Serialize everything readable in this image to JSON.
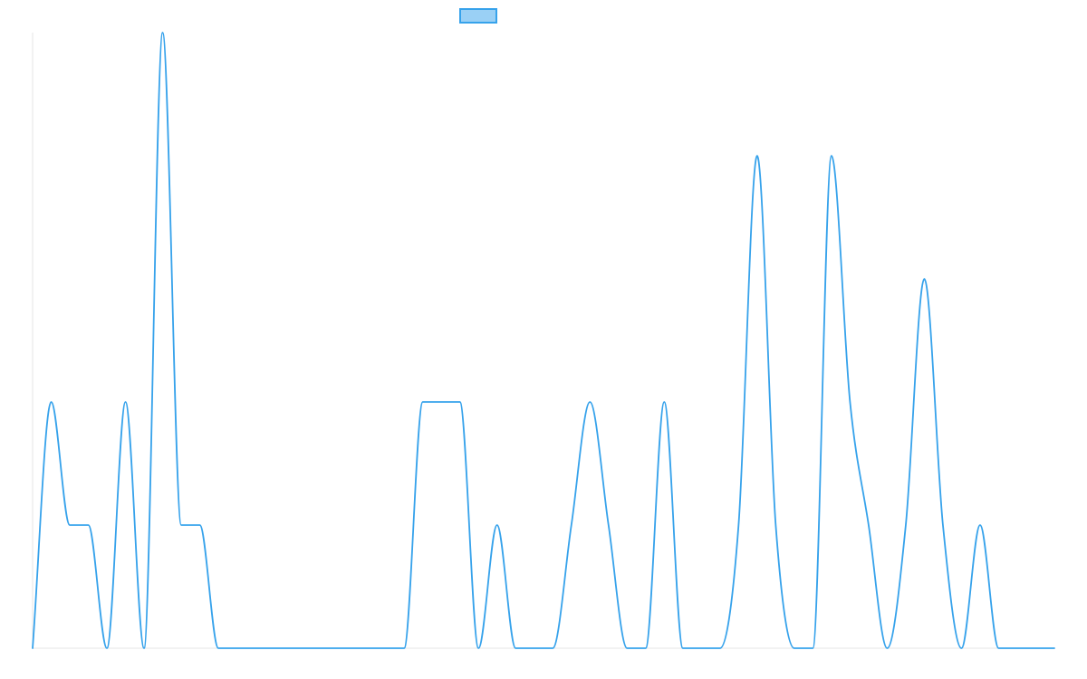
{
  "chart_data": {
    "type": "line",
    "title": "",
    "xlabel": "",
    "ylabel": "",
    "grid": false,
    "legend": {
      "placement": "top-center",
      "labels": [
        ""
      ]
    },
    "x": [
      0,
      1,
      2,
      3,
      4,
      5,
      6,
      7,
      8,
      9,
      10,
      11,
      12,
      13,
      14,
      15,
      16,
      17,
      18,
      19,
      20,
      21,
      22,
      23,
      24,
      25,
      26,
      27,
      28,
      29,
      30,
      31,
      32,
      33,
      34,
      35,
      36,
      37,
      38,
      39,
      40,
      41,
      42,
      43,
      44,
      45,
      46,
      47,
      48,
      49,
      50,
      51,
      52,
      53,
      54,
      55
    ],
    "ylim": [
      0,
      5
    ],
    "series": [
      {
        "name": "",
        "color": "#36a2eb",
        "fill": "#9ad0f5",
        "values": [
          0,
          2,
          1,
          1,
          0,
          2,
          0,
          5,
          1,
          1,
          0,
          0,
          0,
          0,
          0,
          0,
          0,
          0,
          0,
          0,
          0,
          2,
          2,
          2,
          0,
          1,
          0,
          0,
          0,
          1,
          2,
          1,
          0,
          0,
          2,
          0,
          0,
          0,
          1,
          4,
          1,
          0,
          0,
          4,
          2,
          1,
          0,
          1,
          3,
          1,
          0,
          1,
          0,
          0,
          0,
          0
        ]
      }
    ]
  }
}
